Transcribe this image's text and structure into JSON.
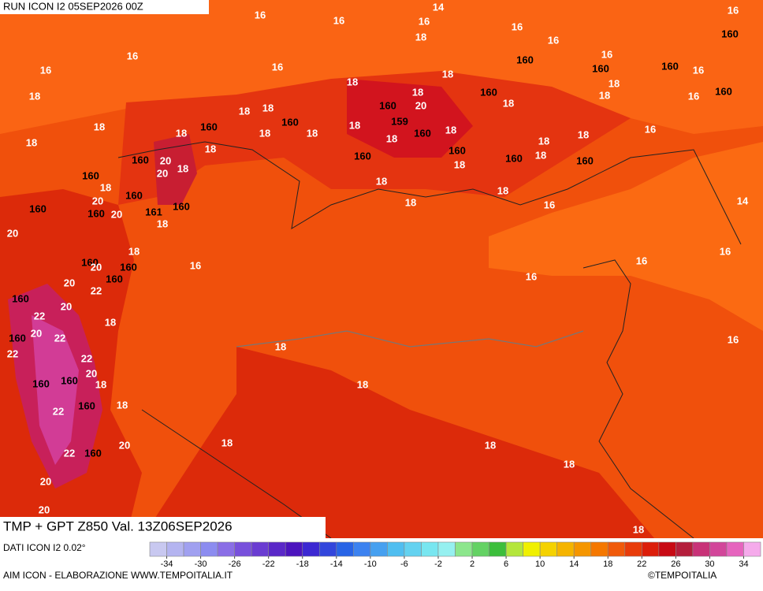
{
  "header": {
    "run": "RUN ICON I2 05SEP2026 00Z",
    "title": "TMP + GPT Z850 Val. 13Z06SEP2026",
    "source": "DATI ICON I2 0.02°",
    "credit": "AIM ICON - ELABORAZIONE WWW.TEMPOITALIA.IT",
    "copyright": "©TEMPOITALIA"
  },
  "map": {
    "labels": [
      "16",
      "16",
      "14",
      "16",
      "16",
      "16",
      "18",
      "16",
      "160",
      "16",
      "160",
      "16",
      "16",
      "16",
      "160",
      "160",
      "16",
      "18",
      "18",
      "18",
      "160",
      "18",
      "160",
      "18",
      "18",
      "160",
      "20",
      "18",
      "18",
      "16",
      "18",
      "160",
      "160",
      "18",
      "159",
      "18",
      "18",
      "18",
      "18",
      "160",
      "18",
      "16",
      "18",
      "18",
      "18",
      "160",
      "18",
      "18",
      "160",
      "20",
      "20",
      "18",
      "160",
      "18",
      "160",
      "18",
      "160",
      "160",
      "18",
      "18",
      "18",
      "160",
      "20",
      "160",
      "161",
      "18",
      "16",
      "14",
      "160",
      "160",
      "20",
      "18",
      "20",
      "18",
      "160",
      "16",
      "160",
      "20",
      "16",
      "16",
      "160",
      "20",
      "22",
      "16",
      "160",
      "20",
      "22",
      "18",
      "160",
      "20",
      "22",
      "18",
      "16",
      "22",
      "22",
      "20",
      "160",
      "160",
      "18",
      "18",
      "160",
      "18",
      "22",
      "20",
      "22",
      "160",
      "18",
      "18",
      "18",
      "20",
      "20",
      "18"
    ]
  },
  "colorbar": {
    "lim": [
      -36,
      36
    ],
    "ticks": [
      -34,
      -30,
      -26,
      -22,
      -18,
      -14,
      -10,
      -6,
      -2,
      2,
      6,
      10,
      14,
      18,
      22,
      26,
      30,
      34
    ],
    "colors": [
      "#c8c8f0",
      "#b4b4f0",
      "#a0a0f0",
      "#8c8cf0",
      "#8a6ee6",
      "#7850dc",
      "#6a3cd2",
      "#5a28c8",
      "#4c14be",
      "#3c28d2",
      "#3246dc",
      "#2864e6",
      "#3c82f0",
      "#46a0f0",
      "#50bef0",
      "#64d2f0",
      "#78e6f0",
      "#96f0f0",
      "#8ce68c",
      "#64d264",
      "#3cbe3c",
      "#b4e63c",
      "#f0f000",
      "#f5d200",
      "#f5b400",
      "#f59600",
      "#f57800",
      "#f05a0a",
      "#e83c0a",
      "#dc1e0a",
      "#c80a14",
      "#b41e3c",
      "#c83278",
      "#d2469a",
      "#e664be",
      "#f5aaeb"
    ]
  }
}
